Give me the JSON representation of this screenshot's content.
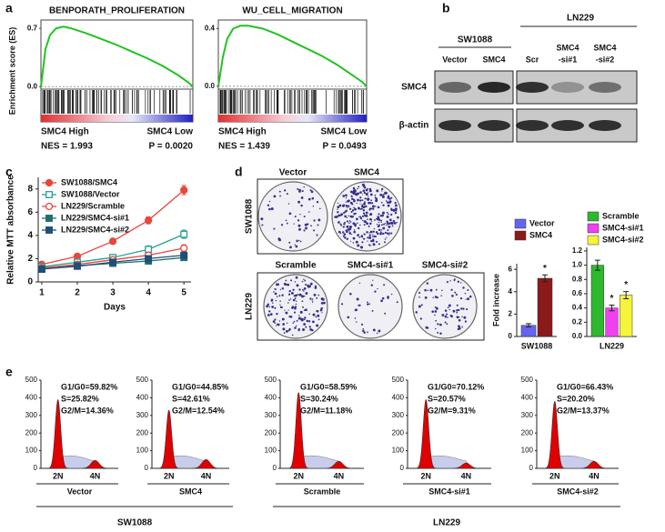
{
  "panel_labels": [
    "a",
    "b",
    "c",
    "d",
    "e"
  ],
  "chart_data": [
    {
      "type": "gsea",
      "title": "BENPORATH_PROLIFERATION",
      "ylabel": "Enrichment score (ES)",
      "x": [
        0,
        0.03,
        0.06,
        0.1,
        0.15,
        0.2,
        0.3,
        0.4,
        0.5,
        0.6,
        0.7,
        0.8,
        0.9,
        0.97,
        1
      ],
      "values": [
        0,
        0.45,
        0.62,
        0.7,
        0.72,
        0.7,
        0.64,
        0.57,
        0.5,
        0.42,
        0.34,
        0.25,
        0.14,
        0.05,
        0
      ],
      "color": "#22c222",
      "xlim": [
        0,
        1
      ],
      "ylim": [
        -0.03,
        0.8
      ],
      "yticks": [
        0.7,
        {
          "value": 0,
          "label": "0.0"
        }
      ],
      "annotations": [
        "SMC4 High",
        "SMC4 Low",
        "NES = 1.993",
        "P = 0.0020"
      ]
    },
    {
      "type": "gsea",
      "title": "WU_CELL_MIGRATION",
      "x": [
        0,
        0.03,
        0.06,
        0.1,
        0.15,
        0.2,
        0.3,
        0.4,
        0.5,
        0.6,
        0.7,
        0.8,
        0.9,
        0.97,
        1
      ],
      "values": [
        0,
        0.2,
        0.33,
        0.4,
        0.42,
        0.42,
        0.4,
        0.36,
        0.31,
        0.26,
        0.21,
        0.15,
        0.08,
        0.03,
        0
      ],
      "color": "#22c222",
      "xlim": [
        0,
        1
      ],
      "ylim": [
        -0.02,
        0.46
      ],
      "yticks": [
        0.4,
        {
          "value": 0,
          "label": "0.0"
        }
      ],
      "annotations": [
        "SMC4 High",
        "SMC4 Low",
        "NES = 1.439",
        "P = 0.0493"
      ]
    },
    {
      "type": "line",
      "xlabel": "Days",
      "ylabel": "Relative MTT absorbance",
      "x": [
        1,
        2,
        3,
        4,
        5
      ],
      "xlim": [
        0.9,
        5.2
      ],
      "xticks": [
        1,
        2,
        3,
        4,
        5
      ],
      "ylim": [
        0,
        9
      ],
      "yticks": [
        0,
        2,
        4,
        6,
        8
      ],
      "legend": "upper left",
      "series": [
        {
          "name": "SW1088/SMC4",
          "color": "#e8463c",
          "marker": "circle",
          "filled": true,
          "values": [
            1.5,
            2.2,
            3.5,
            5.3,
            7.9
          ],
          "errors": [
            0.1,
            0.15,
            0.2,
            0.3,
            0.4
          ]
        },
        {
          "name": "SW1088/Vector",
          "color": "#2a9d96",
          "marker": "square",
          "filled": false,
          "values": [
            1.3,
            1.7,
            2.1,
            2.8,
            4.1
          ],
          "errors": [
            0.1,
            0.1,
            0.2,
            0.3,
            0.35
          ]
        },
        {
          "name": "LN229/Scramble",
          "color": "#e8463c",
          "marker": "circle",
          "filled": false,
          "values": [
            1.2,
            1.5,
            1.9,
            2.3,
            2.9
          ],
          "errors": [
            0.1,
            0.1,
            0.15,
            0.2,
            0.3
          ]
        },
        {
          "name": "LN229/SMC4-si#1",
          "color": "#1f6f6b",
          "marker": "square",
          "filled": true,
          "values": [
            1.1,
            1.4,
            1.6,
            1.8,
            2.1
          ],
          "errors": [
            0.1,
            0.1,
            0.1,
            0.15,
            0.2
          ]
        },
        {
          "name": "LN229/SMC4-si#2",
          "color": "#1f4e79",
          "marker": "square",
          "filled": true,
          "values": [
            1.1,
            1.35,
            1.7,
            2.0,
            2.3
          ],
          "errors": [
            0.1,
            0.1,
            0.1,
            0.15,
            0.2
          ]
        }
      ]
    },
    {
      "type": "bar",
      "ylabel": "Fold increase",
      "categories": [
        "SW1088"
      ],
      "ylim": [
        0,
        6.5
      ],
      "yticks": [
        0,
        2,
        4,
        6
      ],
      "series": [
        {
          "name": "Vector",
          "color": "#6464f0",
          "values": [
            1.0
          ],
          "errors": [
            0.15
          ]
        },
        {
          "name": "SMC4",
          "color": "#8b1a1a",
          "values": [
            5.2
          ],
          "errors": [
            0.3
          ]
        }
      ],
      "annotations": [
        "*"
      ]
    },
    {
      "type": "bar",
      "categories": [
        "LN229"
      ],
      "ylim": [
        0,
        1.25
      ],
      "yticks": [
        {
          "value": 0,
          "label": "0.0"
        },
        0.2,
        0.4,
        0.6,
        0.8,
        {
          "value": 1,
          "label": "1.0"
        },
        1.2
      ],
      "series": [
        {
          "name": "Scramble",
          "color": "#2db82d",
          "values": [
            1.0
          ],
          "errors": [
            0.07
          ]
        },
        {
          "name": "SMC4-si#1",
          "color": "#f040f0",
          "values": [
            0.4
          ],
          "errors": [
            0.04
          ]
        },
        {
          "name": "SMC4-si#2",
          "color": "#f5f53a",
          "values": [
            0.58
          ],
          "errors": [
            0.05
          ]
        }
      ],
      "annotations": [
        "*",
        "*"
      ]
    },
    {
      "type": "area",
      "categories": [
        "2N",
        "4N"
      ],
      "values": [
        390,
        45
      ],
      "xlabel": "Vector",
      "color": "#e00000",
      "ylim": [
        0,
        500
      ],
      "yticks": [
        0,
        100,
        200,
        300,
        400,
        500
      ],
      "annotations": [
        "G1/G0=59.82%",
        "S=25.82%",
        "G2/M=14.36%"
      ]
    },
    {
      "type": "area",
      "categories": [
        "2N",
        "4N"
      ],
      "values": [
        330,
        50
      ],
      "xlabel": "SMC4",
      "color": "#e00000",
      "ylim": [
        0,
        500
      ],
      "yticks": [
        0,
        100,
        200,
        300,
        400,
        500
      ],
      "annotations": [
        "G1/G0=44.85%",
        "S=42.61%",
        "G2/M=12.54%"
      ]
    },
    {
      "type": "area",
      "categories": [
        "2N",
        "4N"
      ],
      "values": [
        430,
        40
      ],
      "xlabel": "Scramble",
      "color": "#e00000",
      "ylim": [
        0,
        500
      ],
      "yticks": [
        0,
        100,
        200,
        300,
        400,
        500
      ],
      "annotations": [
        "G1/G0=58.59%",
        "S=30.24%",
        "G2/M=11.18%"
      ]
    },
    {
      "type": "area",
      "categories": [
        "2N",
        "4N"
      ],
      "values": [
        390,
        30
      ],
      "xlabel": "SMC4-si#1",
      "color": "#e00000",
      "ylim": [
        0,
        500
      ],
      "yticks": [
        0,
        100,
        200,
        300,
        400,
        500
      ],
      "annotations": [
        "G1/G0=70.12%",
        "S=20.57%",
        "G2/M=9.31%"
      ]
    },
    {
      "type": "area",
      "categories": [
        "2N",
        "4N"
      ],
      "values": [
        380,
        40
      ],
      "xlabel": "SMC4-si#2",
      "color": "#e00000",
      "ylim": [
        0,
        500
      ],
      "yticks": [
        0,
        100,
        200,
        300,
        400,
        500
      ],
      "annotations": [
        "G1/G0=66.43%",
        "S=20.20%",
        "G2/M=13.37%"
      ]
    }
  ],
  "blot": {
    "groups": [
      "SW1088",
      "LN229"
    ],
    "lanes": [
      "Vector",
      "SMC4",
      "Scr",
      [
        "SMC4",
        "-si#1"
      ],
      [
        "SMC4",
        "-si#2"
      ]
    ],
    "rows": [
      "SMC4",
      "β-actin"
    ]
  },
  "colony": {
    "columns_top": [
      "Vector",
      "SMC4"
    ],
    "columns_bottom": [
      "Scramble",
      "SMC4-si#1",
      "SMC4-si#2"
    ],
    "rows": [
      "SW1088",
      "LN229"
    ]
  },
  "flow_groups": [
    "SW1088",
    "LN229"
  ]
}
